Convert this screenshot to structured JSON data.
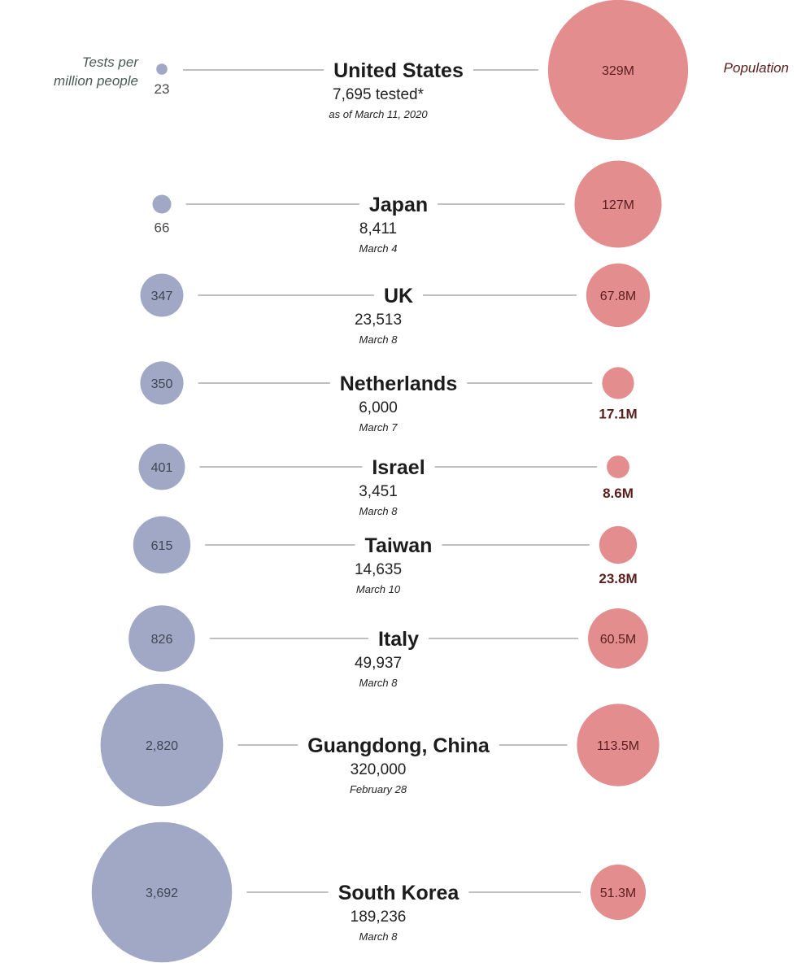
{
  "chart_data": {
    "type": "bubble-comparison",
    "legend": {
      "tests_label": [
        "Tests per",
        "million people"
      ],
      "population_label": "Population"
    },
    "colors": {
      "tests": "#a0a8c6",
      "population": "#e48d8e",
      "tests_text": "#3f4652",
      "population_text": "#5a1e1e",
      "line": "#999999"
    },
    "rows": [
      {
        "country": "United States",
        "tested": "7,695 tested*",
        "date": "as of March 11, 2020",
        "tests_per_million": 23,
        "tests_label": "23",
        "population_m": 329,
        "population_label": "329M"
      },
      {
        "country": "Japan",
        "tested": "8,411",
        "date": "March 4",
        "tests_per_million": 66,
        "tests_label": "66",
        "population_m": 127,
        "population_label": "127M"
      },
      {
        "country": "UK",
        "tested": "23,513",
        "date": "March 8",
        "tests_per_million": 347,
        "tests_label": "347",
        "population_m": 67.8,
        "population_label": "67.8M"
      },
      {
        "country": "Netherlands",
        "tested": "6,000",
        "date": "March 7",
        "tests_per_million": 350,
        "tests_label": "350",
        "population_m": 17.1,
        "population_label": "17.1M"
      },
      {
        "country": "Israel",
        "tested": "3,451",
        "date": "March 8",
        "tests_per_million": 401,
        "tests_label": "401",
        "population_m": 8.6,
        "population_label": "8.6M"
      },
      {
        "country": "Taiwan",
        "tested": "14,635",
        "date": "March 10",
        "tests_per_million": 615,
        "tests_label": "615",
        "population_m": 23.8,
        "population_label": "23.8M"
      },
      {
        "country": "Italy",
        "tested": "49,937",
        "date": "March 8",
        "tests_per_million": 826,
        "tests_label": "826",
        "population_m": 60.5,
        "population_label": "60.5M"
      },
      {
        "country": "Guangdong, China",
        "tested": "320,000",
        "date": "February 28",
        "tests_per_million": 2820,
        "tests_label": "2,820",
        "population_m": 113.5,
        "population_label": "113.5M"
      },
      {
        "country": "South Korea",
        "tested": "189,236",
        "date": "March 8",
        "tests_per_million": 3692,
        "tests_label": "3,692",
        "population_m": 51.3,
        "population_label": "51.3M"
      }
    ]
  }
}
